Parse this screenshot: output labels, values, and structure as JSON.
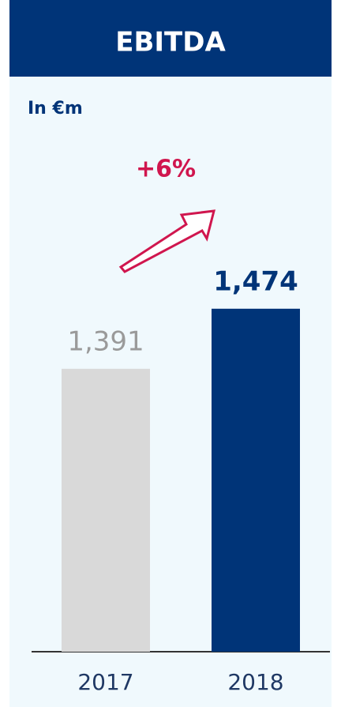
{
  "chart_data": {
    "type": "bar",
    "title": "EBITDA",
    "subtitle": "In €m",
    "annotation": "+6%",
    "categories": [
      "2017",
      "2018"
    ],
    "values": [
      1391,
      1474
    ],
    "value_labels": [
      "1,391",
      "1,474"
    ],
    "colors": [
      "#d9d9d9",
      "#003478"
    ],
    "ylim": [
      1000,
      1500
    ]
  }
}
